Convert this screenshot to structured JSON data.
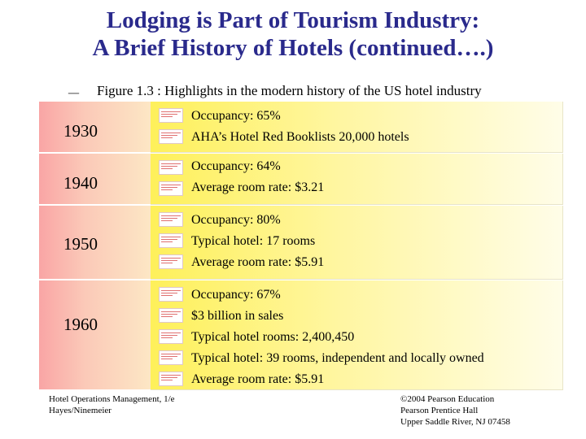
{
  "title": {
    "line1": "Lodging is Part of Tourism Industry:",
    "line2": "A Brief History of Hotels (continued….)"
  },
  "subtitle": {
    "bullet": "–",
    "text": "Figure 1.3 : Highlights in the modern history of the US hotel industry"
  },
  "rows": [
    {
      "year": "1930",
      "lines": [
        "Occupancy: 65%",
        "AHA’s Hotel Red Booklists 20,000 hotels"
      ]
    },
    {
      "year": "1940",
      "lines": [
        "Occupancy: 64%",
        "Average room rate: $3.21"
      ]
    },
    {
      "year": "1950",
      "lines": [
        "Occupancy: 80%",
        "Typical hotel: 17 rooms",
        "Average room rate: $5.91"
      ]
    },
    {
      "year": "1960",
      "lines": [
        "Occupancy: 67%",
        "$3 billion in sales",
        "Typical hotel rooms: 2,400,450",
        "Typical hotel: 39 rooms, independent and locally owned",
        "Average room rate: $5.91"
      ]
    }
  ],
  "footer": {
    "left_line1": "Hotel Operations Management, 1/e",
    "left_line2": "Hayes/Ninemeier",
    "right_line1": "©2004 Pearson Education",
    "right_line2": "Pearson Prentice Hall",
    "right_line3": "Upper Saddle River, NJ 07458"
  }
}
